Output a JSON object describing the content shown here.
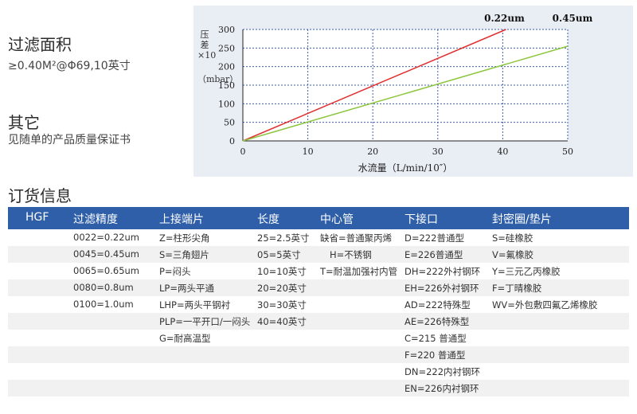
{
  "heading1": "过滤面积",
  "heading1_value": "≥0.40M²@Φ69,10英寸",
  "heading2": "其它",
  "heading2_value": "见随单的产品质量保证书",
  "heading3": "订货信息",
  "chart_data": {
    "type": "line",
    "xlabel": "水流量（L/min/10″）",
    "ylabel_top": "压差×10",
    "ylabel_bottom": "（mbar）",
    "xlim": [
      0,
      50
    ],
    "ylim": [
      0,
      300
    ],
    "x_ticks": [
      0,
      10,
      20,
      30,
      40,
      50
    ],
    "y_ticks": [
      0,
      50,
      100,
      150,
      200,
      250,
      300
    ],
    "x_tick_labels": [
      "0",
      "10",
      "20",
      "30",
      "40",
      "50"
    ],
    "y_tick_labels": [
      "0",
      "50",
      "100",
      "150",
      "200",
      "250",
      "300"
    ],
    "grid": true,
    "series": [
      {
        "name": "0.22um",
        "color": "#e03030",
        "x": [
          0,
          40.5
        ],
        "y": [
          0,
          300
        ]
      },
      {
        "name": "0.45um",
        "color": "#8dc63f",
        "x": [
          0,
          50
        ],
        "y": [
          0,
          255
        ]
      }
    ]
  },
  "table": {
    "headers": [
      "HGF",
      "过滤精度",
      "上接端片",
      "长度",
      "中心管",
      "下接口",
      "封密圈/垫片"
    ],
    "rows": [
      [
        "",
        "0022=0.22um",
        "Z=柱形尖角",
        "25=2.5英寸",
        "缺省=普通聚丙烯",
        "D=222普通型",
        "S=硅橡胶"
      ],
      [
        "",
        "0045=0.45um",
        "S=三角翅片",
        "05=5英寸",
        "H=不锈钢",
        "E=226普通型",
        "V=氟橡胶"
      ],
      [
        "",
        "0065=0.65um",
        "P=闷头",
        "10=10英寸",
        "T=耐温加强衬内管",
        "DH=222外衬钢环",
        "Y=三元乙丙橡胶"
      ],
      [
        "",
        "0080=0.8um",
        "LP=两头平通",
        "20=20英寸",
        "",
        "EH=226外衬钢环",
        "F=丁晴橡胶"
      ],
      [
        "",
        "0100=1.0um",
        "LHP=两头平钢衬",
        "30=30英寸",
        "",
        "AD=222特殊型",
        "WV=外包敷四氟乙烯橡胶"
      ],
      [
        "",
        "",
        "PLP=一平开口/一闷头",
        "40=40英寸",
        "",
        "AE=226特殊型",
        ""
      ],
      [
        "",
        "",
        "G=耐高温型",
        "",
        "",
        "C=215 普通型",
        ""
      ],
      [
        "",
        "",
        "",
        "",
        "",
        "F=220 普通型",
        ""
      ],
      [
        "",
        "",
        "",
        "",
        "",
        "DN=222内衬钢环",
        ""
      ],
      [
        "",
        "",
        "",
        "",
        "",
        "EN=226内衬钢环",
        ""
      ]
    ]
  }
}
